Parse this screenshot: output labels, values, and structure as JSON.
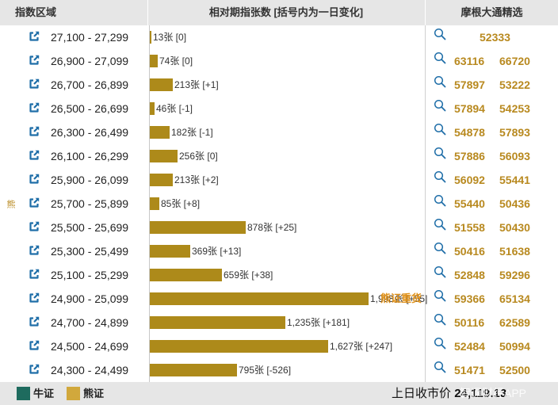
{
  "header": {
    "range_label": "指数区域",
    "count_label": "相对期指张数 [括号内为一日变化]",
    "picks_label": "摩根大通精选"
  },
  "side_label": "熊",
  "max_count": 2350,
  "rows": [
    {
      "range": "27,100 - 27,299",
      "count": 13,
      "label": "13张 [0]",
      "values": [
        "52333"
      ]
    },
    {
      "range": "26,900 - 27,099",
      "count": 74,
      "label": "74张 [0]",
      "values": [
        "63116",
        "66720"
      ]
    },
    {
      "range": "26,700 - 26,899",
      "count": 213,
      "label": "213张 [+1]",
      "values": [
        "57897",
        "53222"
      ]
    },
    {
      "range": "26,500 - 26,699",
      "count": 46,
      "label": "46张 [-1]",
      "values": [
        "57894",
        "54253"
      ]
    },
    {
      "range": "26,300 - 26,499",
      "count": 182,
      "label": "182张 [-1]",
      "values": [
        "54878",
        "57893"
      ]
    },
    {
      "range": "26,100 - 26,299",
      "count": 256,
      "label": "256张 [0]",
      "values": [
        "57886",
        "56093"
      ]
    },
    {
      "range": "25,900 - 26,099",
      "count": 213,
      "label": "213张 [+2]",
      "values": [
        "56092",
        "55441"
      ]
    },
    {
      "range": "25,700 - 25,899",
      "count": 85,
      "label": "85张 [+8]",
      "values": [
        "55440",
        "50436"
      ]
    },
    {
      "range": "25,500 - 25,699",
      "count": 878,
      "label": "878张 [+25]",
      "values": [
        "51558",
        "50430"
      ]
    },
    {
      "range": "25,300 - 25,499",
      "count": 369,
      "label": "369张 [+13]",
      "values": [
        "50416",
        "51638"
      ]
    },
    {
      "range": "25,100 - 25,299",
      "count": 659,
      "label": "659张 [+38]",
      "values": [
        "52848",
        "59296"
      ]
    },
    {
      "range": "24,900 - 25,099",
      "count": 1998,
      "label": "1,998张 [+55]",
      "tag": "熊证重货",
      "values": [
        "59366",
        "65134"
      ]
    },
    {
      "range": "24,700 - 24,899",
      "count": 1235,
      "label": "1,235张 [+181]",
      "values": [
        "50116",
        "62589"
      ]
    },
    {
      "range": "24,500 - 24,699",
      "count": 1627,
      "label": "1,627张 [+247]",
      "values": [
        "52484",
        "50994"
      ]
    },
    {
      "range": "24,300 - 24,499",
      "count": 795,
      "label": "795张 [-526]",
      "values": [
        "51471",
        "52500"
      ]
    }
  ],
  "footer": {
    "bull_label": "牛证",
    "bear_label": "熊证",
    "close_label": "上日收市价",
    "close_value": "24,119.13",
    "watermark": "智通财经APP"
  },
  "colors": {
    "bull": "#1e6b5e",
    "bear": "#d1a83c",
    "bar": "#ad8a1a",
    "value_text": "#b8891f",
    "tag_text": "#e0921b"
  },
  "icons": {
    "link": "external-link-icon",
    "search": "magnifier-icon"
  }
}
